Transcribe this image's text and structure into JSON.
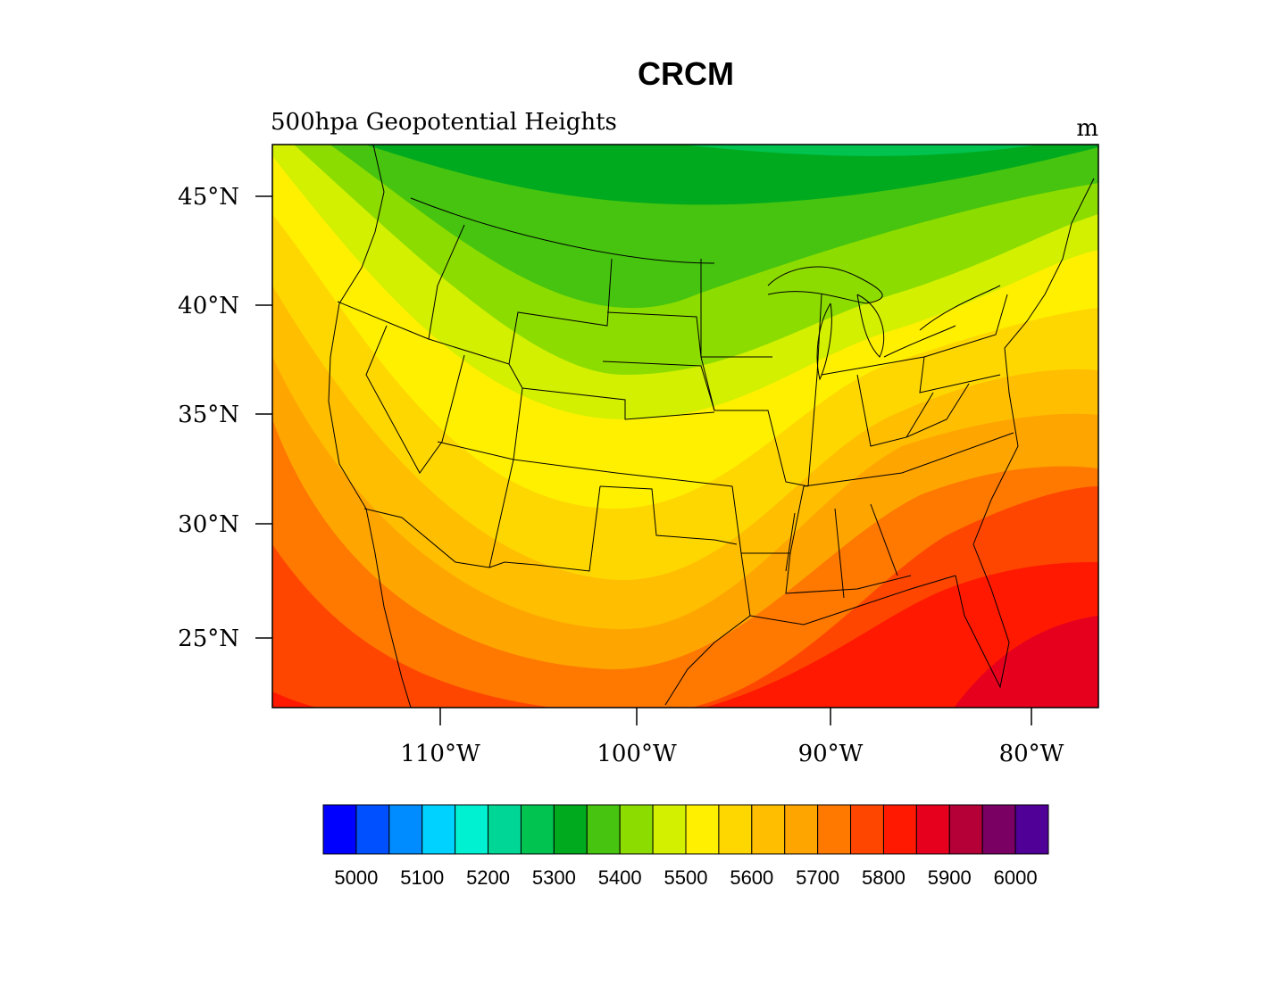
{
  "title": "CRCM",
  "left_string": "500hpa Geopotential Heights",
  "right_string": "m",
  "map": {
    "projection": "lambert-conformal",
    "lat_ticks": [
      "45°N",
      "40°N",
      "35°N",
      "30°N",
      "25°N"
    ],
    "lon_ticks": [
      "110°W",
      "100°W",
      "90°W",
      "80°W"
    ],
    "features": [
      "us-state-boundaries",
      "coastlines",
      "great-lakes"
    ]
  },
  "colorbar": {
    "colors": [
      "#0000ff",
      "#0050ff",
      "#008cff",
      "#00d2ff",
      "#00f0d2",
      "#00d796",
      "#00c350",
      "#00aa1e",
      "#46c40f",
      "#8cdc00",
      "#d2f000",
      "#fff000",
      "#ffd700",
      "#ffbe00",
      "#ffa500",
      "#ff7800",
      "#ff4600",
      "#ff1900",
      "#e6001e",
      "#b40037",
      "#7a0064",
      "#500096"
    ],
    "labels": [
      "5000",
      "5100",
      "5200",
      "5300",
      "5400",
      "5500",
      "5600",
      "5700",
      "5800",
      "5900",
      "6000"
    ]
  },
  "field": {
    "description_units": "m",
    "contour_levels_min": 5000,
    "contour_interval": 50,
    "max_north": 5325,
    "max_south": 5925
  }
}
